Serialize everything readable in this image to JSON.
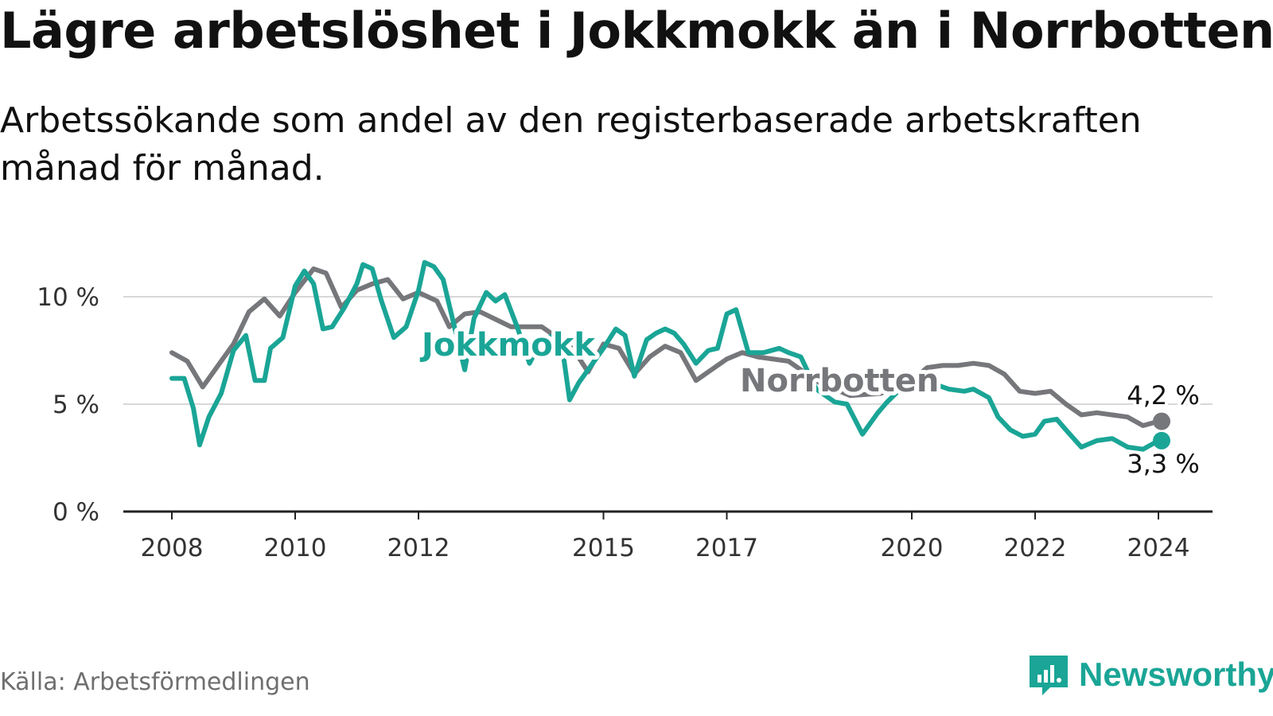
{
  "header": {
    "title": "Lägre arbetslöshet i Jokkmokk än i Norrbotten",
    "subtitle": "Arbetssökande som andel av den registerbaserade arbetskraften månad för månad."
  },
  "footer": {
    "source": "Källa: Arbetsförmedlingen",
    "brand": "Newsworthy"
  },
  "colors": {
    "jokkmokk": "#1aa596",
    "norrbotten": "#76777b",
    "grid": "#d8d8d8",
    "axis": "#222222"
  },
  "chart_data": {
    "type": "line",
    "title": "Lägre arbetslöshet i Jokkmokk än i Norrbotten",
    "xlabel": "",
    "ylabel": "",
    "xlim": [
      2008.0,
      2025.0
    ],
    "ylim": [
      0,
      12
    ],
    "y_ticks": [
      0,
      5,
      10
    ],
    "y_tick_labels": [
      "0 %",
      "5 %",
      "10 %"
    ],
    "x_ticks": [
      2008,
      2010,
      2012,
      2015,
      2017,
      2020,
      2022,
      2024
    ],
    "x_tick_labels": [
      "2008",
      "2010",
      "2012",
      "2015",
      "2017",
      "2020",
      "2022",
      "2024"
    ],
    "grid": true,
    "series": [
      {
        "name": "Norrbotten",
        "label": "Norrbotten",
        "end_label": "4,2 %",
        "points": [
          [
            2008.0,
            7.4
          ],
          [
            2008.25,
            7.0
          ],
          [
            2008.5,
            5.8
          ],
          [
            2008.75,
            6.8
          ],
          [
            2009.0,
            7.8
          ],
          [
            2009.25,
            9.3
          ],
          [
            2009.5,
            9.9
          ],
          [
            2009.75,
            9.1
          ],
          [
            2010.0,
            10.2
          ],
          [
            2010.3,
            11.3
          ],
          [
            2010.5,
            11.1
          ],
          [
            2010.75,
            9.5
          ],
          [
            2011.0,
            10.3
          ],
          [
            2011.25,
            10.6
          ],
          [
            2011.5,
            10.8
          ],
          [
            2011.75,
            9.9
          ],
          [
            2012.0,
            10.2
          ],
          [
            2012.3,
            9.8
          ],
          [
            2012.5,
            8.6
          ],
          [
            2012.75,
            9.2
          ],
          [
            2013.0,
            9.3
          ],
          [
            2013.5,
            8.6
          ],
          [
            2014.0,
            8.6
          ],
          [
            2014.5,
            7.6
          ],
          [
            2014.75,
            6.5
          ],
          [
            2015.0,
            7.8
          ],
          [
            2015.25,
            7.6
          ],
          [
            2015.5,
            6.4
          ],
          [
            2015.75,
            7.2
          ],
          [
            2016.0,
            7.7
          ],
          [
            2016.25,
            7.4
          ],
          [
            2016.5,
            6.1
          ],
          [
            2016.75,
            6.6
          ],
          [
            2017.0,
            7.1
          ],
          [
            2017.25,
            7.4
          ],
          [
            2017.5,
            7.2
          ],
          [
            2018.0,
            7.0
          ],
          [
            2018.5,
            6.0
          ],
          [
            2019.0,
            5.4
          ],
          [
            2019.5,
            5.5
          ],
          [
            2020.0,
            6.1
          ],
          [
            2020.25,
            6.7
          ],
          [
            2020.5,
            6.8
          ],
          [
            2020.75,
            6.8
          ],
          [
            2021.0,
            6.9
          ],
          [
            2021.25,
            6.8
          ],
          [
            2021.5,
            6.4
          ],
          [
            2021.75,
            5.6
          ],
          [
            2022.0,
            5.5
          ],
          [
            2022.25,
            5.6
          ],
          [
            2022.5,
            5.0
          ],
          [
            2022.75,
            4.5
          ],
          [
            2023.0,
            4.6
          ],
          [
            2023.25,
            4.5
          ],
          [
            2023.5,
            4.4
          ],
          [
            2023.75,
            4.0
          ],
          [
            2024.0,
            4.2
          ]
        ]
      },
      {
        "name": "Jokkmokk",
        "label": "Jokkmokk",
        "end_label": "3,3 %",
        "points": [
          [
            2008.0,
            6.2
          ],
          [
            2008.2,
            6.2
          ],
          [
            2008.35,
            4.8
          ],
          [
            2008.45,
            3.1
          ],
          [
            2008.6,
            4.4
          ],
          [
            2008.8,
            5.5
          ],
          [
            2009.0,
            7.5
          ],
          [
            2009.2,
            8.2
          ],
          [
            2009.35,
            6.1
          ],
          [
            2009.5,
            6.1
          ],
          [
            2009.6,
            7.6
          ],
          [
            2009.8,
            8.1
          ],
          [
            2010.0,
            10.5
          ],
          [
            2010.15,
            11.2
          ],
          [
            2010.3,
            10.6
          ],
          [
            2010.45,
            8.5
          ],
          [
            2010.6,
            8.6
          ],
          [
            2010.8,
            9.5
          ],
          [
            2011.0,
            10.6
          ],
          [
            2011.1,
            11.5
          ],
          [
            2011.25,
            11.3
          ],
          [
            2011.4,
            9.8
          ],
          [
            2011.6,
            8.1
          ],
          [
            2011.8,
            8.6
          ],
          [
            2012.0,
            10.3
          ],
          [
            2012.1,
            11.6
          ],
          [
            2012.25,
            11.4
          ],
          [
            2012.4,
            10.8
          ],
          [
            2012.55,
            9.0
          ],
          [
            2012.75,
            6.6
          ],
          [
            2012.9,
            9.0
          ],
          [
            2013.1,
            10.2
          ],
          [
            2013.25,
            9.8
          ],
          [
            2013.4,
            10.1
          ],
          [
            2013.6,
            8.6
          ],
          [
            2013.8,
            6.9
          ],
          [
            2014.0,
            8.0
          ],
          [
            2014.3,
            8.3
          ],
          [
            2014.45,
            5.2
          ],
          [
            2014.6,
            6.0
          ],
          [
            2014.8,
            6.8
          ],
          [
            2015.0,
            7.6
          ],
          [
            2015.2,
            8.5
          ],
          [
            2015.35,
            8.2
          ],
          [
            2015.5,
            6.3
          ],
          [
            2015.7,
            8.0
          ],
          [
            2015.85,
            8.3
          ],
          [
            2016.0,
            8.5
          ],
          [
            2016.15,
            8.3
          ],
          [
            2016.3,
            7.8
          ],
          [
            2016.5,
            6.9
          ],
          [
            2016.7,
            7.5
          ],
          [
            2016.85,
            7.6
          ],
          [
            2017.0,
            9.2
          ],
          [
            2017.15,
            9.4
          ],
          [
            2017.35,
            7.4
          ],
          [
            2017.6,
            7.4
          ],
          [
            2017.85,
            7.6
          ],
          [
            2018.0,
            7.4
          ],
          [
            2018.2,
            7.2
          ],
          [
            2018.45,
            5.7
          ],
          [
            2018.6,
            5.4
          ],
          [
            2018.75,
            5.1
          ],
          [
            2018.95,
            5.0
          ],
          [
            2019.2,
            3.6
          ],
          [
            2019.45,
            4.6
          ],
          [
            2019.6,
            5.1
          ],
          [
            2019.85,
            5.8
          ],
          [
            2020.0,
            6.2
          ],
          [
            2020.2,
            5.8
          ],
          [
            2020.4,
            5.9
          ],
          [
            2020.6,
            5.7
          ],
          [
            2020.85,
            5.6
          ],
          [
            2021.0,
            5.7
          ],
          [
            2021.25,
            5.3
          ],
          [
            2021.4,
            4.4
          ],
          [
            2021.6,
            3.8
          ],
          [
            2021.8,
            3.5
          ],
          [
            2022.0,
            3.6
          ],
          [
            2022.15,
            4.2
          ],
          [
            2022.35,
            4.3
          ],
          [
            2022.5,
            3.8
          ],
          [
            2022.75,
            3.0
          ],
          [
            2023.0,
            3.3
          ],
          [
            2023.25,
            3.4
          ],
          [
            2023.5,
            3.0
          ],
          [
            2023.75,
            2.9
          ],
          [
            2024.0,
            3.3
          ]
        ]
      }
    ]
  }
}
